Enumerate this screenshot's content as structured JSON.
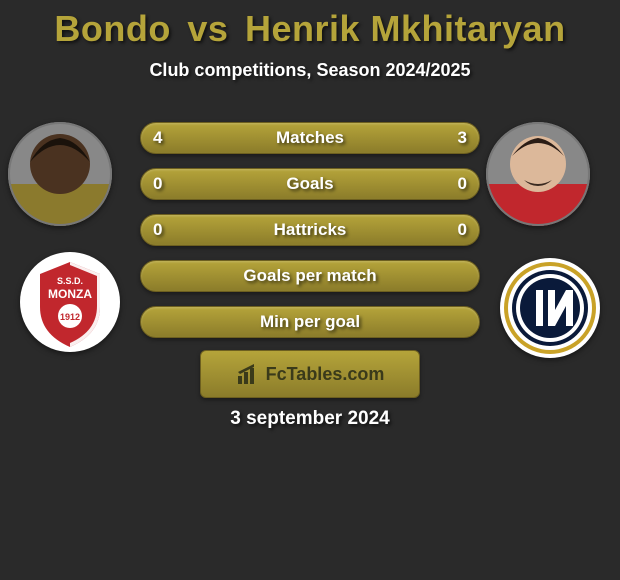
{
  "title_color": "#b5a43a",
  "background_color": "#2a2a2a",
  "bar_bg_gradient": [
    "#b5a43a",
    "#8b7c2a"
  ],
  "bar_border_color": "#6d5f1f",
  "bar_textcolor": "#ffffff",
  "avatar_ring_color": "#888888",
  "header": {
    "title_left": "Bondo",
    "title_vs": "vs",
    "title_right": "Henrik Mkhitaryan",
    "subtitle": "Club competitions, Season 2024/2025"
  },
  "players": {
    "p1": {
      "skin": "#4a3220",
      "shirt": "#8b7a2d"
    },
    "p2": {
      "skin": "#dcb89a",
      "shirt": "#c1272d"
    }
  },
  "clubs": {
    "c1": {
      "name": "Monza",
      "bg": "#ffffff",
      "crest": "#c1272d",
      "text": "MONZA",
      "year": "1912"
    },
    "c2": {
      "name": "Inter",
      "bg": "#0a1a3a",
      "ring": "#ffffff",
      "gold": "#c9a227",
      "letters": "IM"
    }
  },
  "stats": [
    {
      "label": "Matches",
      "left_val": "4",
      "right_val": "3",
      "left_pct": 57,
      "right_pct": 43
    },
    {
      "label": "Goals",
      "left_val": "0",
      "right_val": "0",
      "left_pct": 50,
      "right_pct": 50
    },
    {
      "label": "Hattricks",
      "left_val": "0",
      "right_val": "0",
      "left_pct": 50,
      "right_pct": 50
    },
    {
      "label": "Goals per match",
      "left_val": "",
      "right_val": "",
      "left_pct": 50,
      "right_pct": 50
    },
    {
      "label": "Min per goal",
      "left_val": "",
      "right_val": "",
      "left_pct": 50,
      "right_pct": 50
    }
  ],
  "footer": {
    "brand": "FcTables.com",
    "date": "3 september 2024"
  }
}
